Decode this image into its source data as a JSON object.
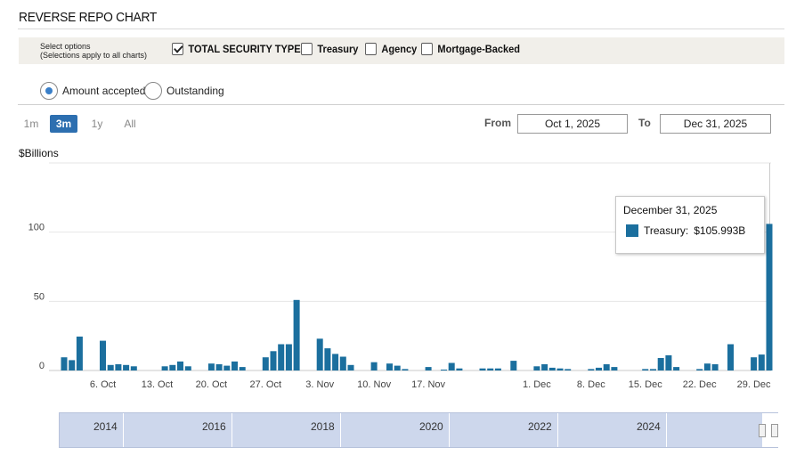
{
  "page_title": "REVERSE REPO CHART",
  "options": {
    "note_line1": "Select options",
    "note_line2": "(Selections apply to all charts)",
    "checkboxes": [
      {
        "label": "TOTAL SECURITY TYPES",
        "checked": true
      },
      {
        "label": "Treasury",
        "checked": false
      },
      {
        "label": "Agency",
        "checked": false
      },
      {
        "label": "Mortgage-Backed",
        "checked": false
      }
    ]
  },
  "radios": [
    {
      "label": "Amount accepted",
      "selected": true
    },
    {
      "label": "Outstanding",
      "selected": false
    }
  ],
  "zoom_buttons": [
    {
      "label": "1m",
      "active": false
    },
    {
      "label": "3m",
      "active": true
    },
    {
      "label": "1y",
      "active": false
    },
    {
      "label": "All",
      "active": false
    }
  ],
  "range": {
    "from_label": "From",
    "from_value": "Oct 1, 2025",
    "to_label": "To",
    "to_value": "Dec 31, 2025"
  },
  "units_label": "$Billions",
  "tooltip": {
    "date": "December 31, 2025",
    "series": "Treasury:",
    "value": "$105.993B"
  },
  "navigator": {
    "years": [
      "2014",
      "2016",
      "2018",
      "2020",
      "2022",
      "2024"
    ]
  },
  "chart_data": {
    "type": "bar",
    "series_color": "#1b6f9e",
    "ylim": [
      0,
      150
    ],
    "yticks": [
      0,
      50,
      100
    ],
    "x_start": "2025-10-01",
    "x_end": "2025-12-31",
    "xtick_labels": [
      {
        "date": "2025-10-06",
        "label": "6. Oct"
      },
      {
        "date": "2025-10-13",
        "label": "13. Oct"
      },
      {
        "date": "2025-10-20",
        "label": "20. Oct"
      },
      {
        "date": "2025-10-27",
        "label": "27. Oct"
      },
      {
        "date": "2025-11-03",
        "label": "3. Nov"
      },
      {
        "date": "2025-11-10",
        "label": "10. Nov"
      },
      {
        "date": "2025-11-17",
        "label": "17. Nov"
      },
      {
        "date": "2025-12-01",
        "label": "1. Dec"
      },
      {
        "date": "2025-12-08",
        "label": "8. Dec"
      },
      {
        "date": "2025-12-15",
        "label": "15. Dec"
      },
      {
        "date": "2025-12-22",
        "label": "22. Dec"
      },
      {
        "date": "2025-12-29",
        "label": "29. Dec"
      }
    ],
    "points": [
      {
        "date": "2025-10-01",
        "value": 9.5
      },
      {
        "date": "2025-10-02",
        "value": 7.5
      },
      {
        "date": "2025-10-03",
        "value": 24.5
      },
      {
        "date": "2025-10-06",
        "value": 21.5
      },
      {
        "date": "2025-10-07",
        "value": 4.0
      },
      {
        "date": "2025-10-08",
        "value": 4.5
      },
      {
        "date": "2025-10-09",
        "value": 4.0
      },
      {
        "date": "2025-10-10",
        "value": 3.0
      },
      {
        "date": "2025-10-14",
        "value": 3.0
      },
      {
        "date": "2025-10-15",
        "value": 4.0
      },
      {
        "date": "2025-10-16",
        "value": 6.5
      },
      {
        "date": "2025-10-17",
        "value": 3.0
      },
      {
        "date": "2025-10-20",
        "value": 5.0
      },
      {
        "date": "2025-10-21",
        "value": 4.5
      },
      {
        "date": "2025-10-22",
        "value": 3.5
      },
      {
        "date": "2025-10-23",
        "value": 6.5
      },
      {
        "date": "2025-10-24",
        "value": 2.5
      },
      {
        "date": "2025-10-27",
        "value": 9.5
      },
      {
        "date": "2025-10-28",
        "value": 14.0
      },
      {
        "date": "2025-10-29",
        "value": 19.0
      },
      {
        "date": "2025-10-30",
        "value": 19.0
      },
      {
        "date": "2025-10-31",
        "value": 51.0
      },
      {
        "date": "2025-11-03",
        "value": 23.0
      },
      {
        "date": "2025-11-04",
        "value": 16.0
      },
      {
        "date": "2025-11-05",
        "value": 12.0
      },
      {
        "date": "2025-11-06",
        "value": 10.0
      },
      {
        "date": "2025-11-07",
        "value": 4.0
      },
      {
        "date": "2025-11-10",
        "value": 6.0
      },
      {
        "date": "2025-11-12",
        "value": 5.0
      },
      {
        "date": "2025-11-13",
        "value": 3.5
      },
      {
        "date": "2025-11-14",
        "value": 1.0
      },
      {
        "date": "2025-11-17",
        "value": 2.5
      },
      {
        "date": "2025-11-19",
        "value": 0.5
      },
      {
        "date": "2025-11-20",
        "value": 5.5
      },
      {
        "date": "2025-11-21",
        "value": 1.5
      },
      {
        "date": "2025-11-24",
        "value": 1.5
      },
      {
        "date": "2025-11-25",
        "value": 1.5
      },
      {
        "date": "2025-11-26",
        "value": 1.5
      },
      {
        "date": "2025-11-28",
        "value": 7.0
      },
      {
        "date": "2025-12-01",
        "value": 3.0
      },
      {
        "date": "2025-12-02",
        "value": 4.5
      },
      {
        "date": "2025-12-03",
        "value": 2.0
      },
      {
        "date": "2025-12-04",
        "value": 1.5
      },
      {
        "date": "2025-12-05",
        "value": 1.0
      },
      {
        "date": "2025-12-08",
        "value": 1.0
      },
      {
        "date": "2025-12-09",
        "value": 2.0
      },
      {
        "date": "2025-12-10",
        "value": 4.5
      },
      {
        "date": "2025-12-11",
        "value": 2.5
      },
      {
        "date": "2025-12-15",
        "value": 1.0
      },
      {
        "date": "2025-12-16",
        "value": 1.0
      },
      {
        "date": "2025-12-17",
        "value": 9.0
      },
      {
        "date": "2025-12-18",
        "value": 11.0
      },
      {
        "date": "2025-12-19",
        "value": 2.5
      },
      {
        "date": "2025-12-22",
        "value": 1.0
      },
      {
        "date": "2025-12-23",
        "value": 5.0
      },
      {
        "date": "2025-12-24",
        "value": 4.5
      },
      {
        "date": "2025-12-26",
        "value": 19.0
      },
      {
        "date": "2025-12-29",
        "value": 9.5
      },
      {
        "date": "2025-12-30",
        "value": 11.5
      },
      {
        "date": "2025-12-31",
        "value": 105.993
      }
    ]
  }
}
